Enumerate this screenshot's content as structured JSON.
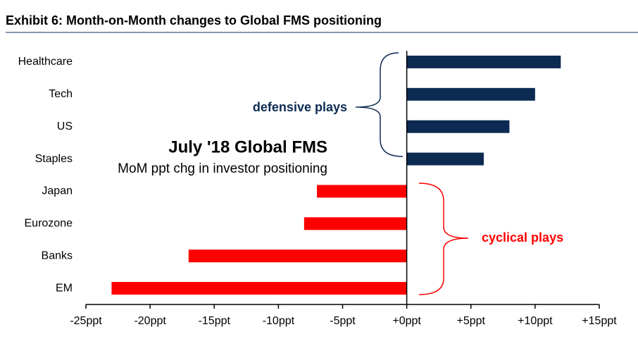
{
  "chart_data": {
    "type": "hbar",
    "title": "Exhibit 6: Month-on-Month changes to Global FMS positioning",
    "categories": [
      "Healthcare",
      "Tech",
      "US",
      "Staples",
      "Japan",
      "Eurozone",
      "Banks",
      "EM"
    ],
    "values": [
      12,
      10,
      8,
      6,
      -7,
      -8,
      -17,
      -23
    ],
    "colors": [
      "#0d2b52",
      "#0d2b52",
      "#0d2b52",
      "#0d2b52",
      "#ff0000",
      "#ff0000",
      "#ff0000",
      "#ff0000"
    ],
    "xlim": [
      -25,
      15
    ],
    "xticks": [
      {
        "value": -25,
        "label": "-25ppt"
      },
      {
        "value": -20,
        "label": "-20ppt"
      },
      {
        "value": -15,
        "label": "-15ppt"
      },
      {
        "value": -10,
        "label": "-10ppt"
      },
      {
        "value": -5,
        "label": "-5ppt"
      },
      {
        "value": 0,
        "label": "+0ppt"
      },
      {
        "value": 5,
        "label": "+5ppt"
      },
      {
        "value": 10,
        "label": "+10ppt"
      },
      {
        "value": 15,
        "label": "+15ppt"
      }
    ],
    "annotations": {
      "defensive": "defensive plays",
      "cyclical": "cyclical plays",
      "headline": "July '18 Global FMS",
      "subhead": "MoM ppt chg in investor positioning"
    }
  }
}
